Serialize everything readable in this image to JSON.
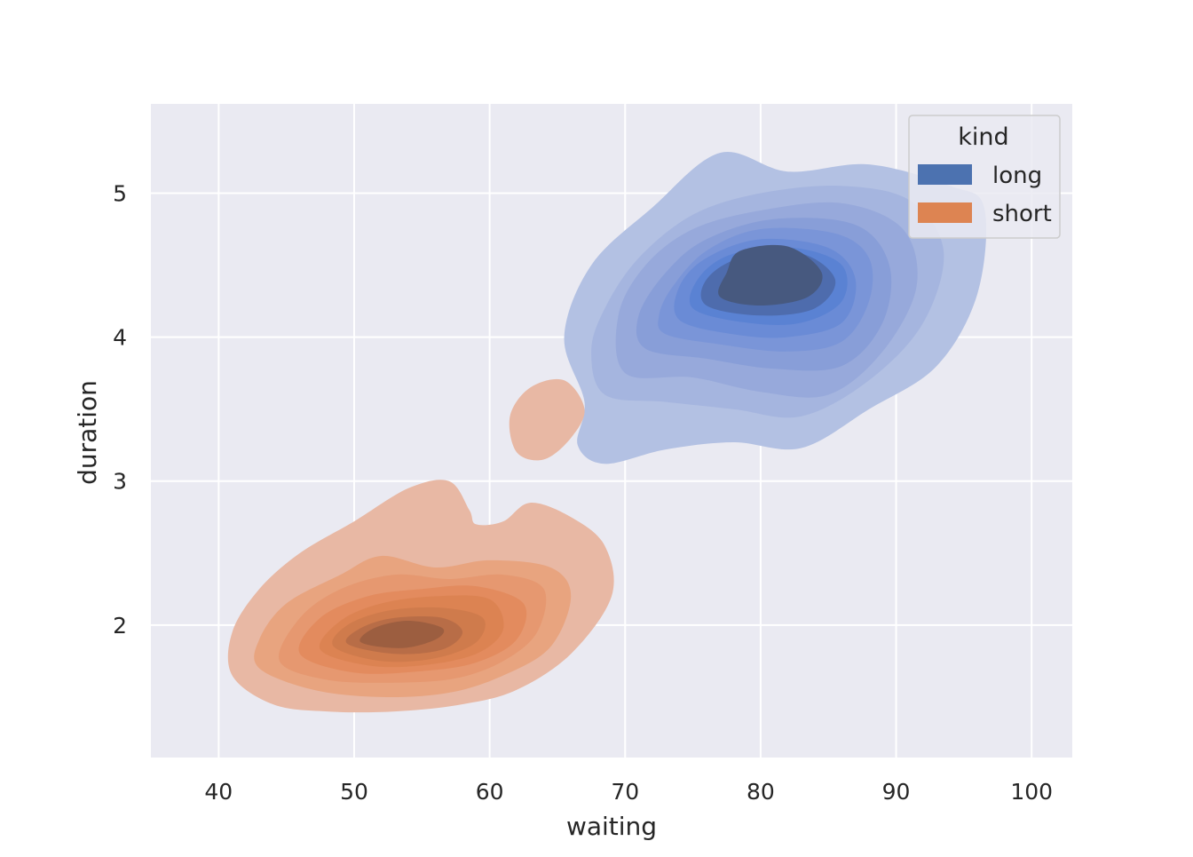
{
  "chart_data": {
    "type": "kde",
    "title": "",
    "xlabel": "waiting",
    "ylabel": "duration",
    "xlim": [
      35,
      103
    ],
    "ylim": [
      1.08,
      5.62
    ],
    "xticks": [
      40,
      50,
      60,
      70,
      80,
      90,
      100
    ],
    "yticks": [
      2,
      3,
      4,
      5
    ],
    "grid": true,
    "fill": true,
    "legend": {
      "title": "kind",
      "placement": "upper-right",
      "entries": [
        "long",
        "short"
      ]
    },
    "series": [
      {
        "name": "long",
        "color": "#4c72b0",
        "levels": [
          {
            "color": "#b3c1e3",
            "points": [
              [
                68.5,
                3.12
              ],
              [
                73,
                3.22
              ],
              [
                78,
                3.27
              ],
              [
                83,
                3.23
              ],
              [
                88,
                3.5
              ],
              [
                93,
                3.8
              ],
              [
                96,
                4.3
              ],
              [
                96.5,
                4.9
              ],
              [
                94,
                5.05
              ],
              [
                88,
                5.2
              ],
              [
                82,
                5.15
              ],
              [
                77,
                5.28
              ],
              [
                72,
                4.9
              ],
              [
                67.5,
                4.5
              ],
              [
                65.5,
                4.0
              ],
              [
                67,
                3.55
              ],
              [
                66.5,
                3.25
              ]
            ]
          },
          {
            "color": "#a5b5df",
            "points": [
              [
                68.5,
                3.6
              ],
              [
                73,
                3.55
              ],
              [
                78,
                3.5
              ],
              [
                83,
                3.45
              ],
              [
                88,
                3.7
              ],
              [
                92,
                4.1
              ],
              [
                93.5,
                4.6
              ],
              [
                91,
                4.95
              ],
              [
                86,
                5.05
              ],
              [
                80,
                5.0
              ],
              [
                75,
                4.85
              ],
              [
                71,
                4.55
              ],
              [
                68.5,
                4.2
              ],
              [
                67.5,
                3.9
              ]
            ]
          },
          {
            "color": "#97a9db",
            "points": [
              [
                70,
                3.75
              ],
              [
                75,
                3.72
              ],
              [
                80,
                3.62
              ],
              [
                85,
                3.6
              ],
              [
                89,
                3.9
              ],
              [
                91.5,
                4.35
              ],
              [
                90.5,
                4.75
              ],
              [
                86,
                4.93
              ],
              [
                80,
                4.88
              ],
              [
                75,
                4.75
              ],
              [
                71.5,
                4.5
              ],
              [
                69.5,
                4.15
              ]
            ]
          },
          {
            "color": "#889ed8",
            "points": [
              [
                71.5,
                3.92
              ],
              [
                76,
                3.85
              ],
              [
                81,
                3.78
              ],
              [
                86,
                3.8
              ],
              [
                89,
                4.1
              ],
              [
                89.5,
                4.5
              ],
              [
                87,
                4.78
              ],
              [
                81,
                4.82
              ],
              [
                76,
                4.68
              ],
              [
                73,
                4.45
              ],
              [
                71,
                4.15
              ]
            ]
          },
          {
            "color": "#7a95d8",
            "points": [
              [
                73,
                4.02
              ],
              [
                77,
                3.95
              ],
              [
                82,
                3.9
              ],
              [
                86,
                3.97
              ],
              [
                88,
                4.25
              ],
              [
                88,
                4.55
              ],
              [
                85.5,
                4.72
              ],
              [
                80,
                4.75
              ],
              [
                76,
                4.6
              ],
              [
                73.5,
                4.35
              ],
              [
                72.5,
                4.15
              ]
            ]
          },
          {
            "color": "#6a8bd6",
            "points": [
              [
                74,
                4.12
              ],
              [
                78,
                4.02
              ],
              [
                82,
                4.0
              ],
              [
                86,
                4.1
              ],
              [
                87,
                4.4
              ],
              [
                85,
                4.62
              ],
              [
                80,
                4.68
              ],
              [
                76,
                4.55
              ],
              [
                74,
                4.35
              ]
            ]
          },
          {
            "color": "#5a82d3",
            "points": [
              [
                75,
                4.2
              ],
              [
                79,
                4.1
              ],
              [
                83,
                4.1
              ],
              [
                86,
                4.25
              ],
              [
                86,
                4.5
              ],
              [
                82.5,
                4.62
              ],
              [
                78,
                4.58
              ],
              [
                75.5,
                4.42
              ]
            ]
          },
          {
            "color": "#4e6cad",
            "points": [
              [
                76,
                4.22
              ],
              [
                80,
                4.15
              ],
              [
                84,
                4.2
              ],
              [
                85.5,
                4.4
              ],
              [
                83,
                4.58
              ],
              [
                78.5,
                4.55
              ],
              [
                76,
                4.4
              ]
            ]
          },
          {
            "color": "#47597f",
            "points": [
              [
                77,
                4.28
              ],
              [
                80,
                4.22
              ],
              [
                83.5,
                4.28
              ],
              [
                84.5,
                4.45
              ],
              [
                82,
                4.63
              ],
              [
                78.5,
                4.6
              ],
              [
                77.5,
                4.45
              ]
            ]
          }
        ]
      },
      {
        "name": "short",
        "color": "#dd8452",
        "levels": [
          {
            "color": "#e8b8a4",
            "points": [
              [
                41,
                1.65
              ],
              [
                44,
                1.45
              ],
              [
                48,
                1.4
              ],
              [
                53,
                1.4
              ],
              [
                58,
                1.45
              ],
              [
                62,
                1.55
              ],
              [
                66,
                1.8
              ],
              [
                69,
                2.2
              ],
              [
                68.5,
                2.55
              ],
              [
                66,
                2.75
              ],
              [
                63,
                2.85
              ],
              [
                61,
                2.72
              ],
              [
                59,
                2.7
              ],
              [
                58.5,
                2.8
              ],
              [
                57,
                3.0
              ],
              [
                54,
                2.95
              ],
              [
                50,
                2.72
              ],
              [
                46,
                2.5
              ],
              [
                43,
                2.25
              ],
              [
                41,
                1.95
              ]
            ]
          },
          {
            "color": "#e8b8a4",
            "points": [
              [
                62,
                3.2
              ],
              [
                64,
                3.15
              ],
              [
                66,
                3.3
              ],
              [
                67,
                3.5
              ],
              [
                65.5,
                3.7
              ],
              [
                63,
                3.65
              ],
              [
                61.5,
                3.45
              ]
            ]
          },
          {
            "color": "#e8a47f",
            "points": [
              [
                43,
                1.7
              ],
              [
                47,
                1.55
              ],
              [
                52,
                1.5
              ],
              [
                57,
                1.53
              ],
              [
                61,
                1.65
              ],
              [
                64.5,
                1.85
              ],
              [
                66,
                2.2
              ],
              [
                64.5,
                2.4
              ],
              [
                60,
                2.45
              ],
              [
                56,
                2.4
              ],
              [
                52,
                2.48
              ],
              [
                49,
                2.35
              ],
              [
                45,
                2.15
              ],
              [
                43,
                1.9
              ]
            ]
          },
          {
            "color": "#e69870",
            "points": [
              [
                44.5,
                1.75
              ],
              [
                48,
                1.62
              ],
              [
                53,
                1.6
              ],
              [
                57.5,
                1.63
              ],
              [
                61,
                1.75
              ],
              [
                63.5,
                1.95
              ],
              [
                64,
                2.25
              ],
              [
                61,
                2.35
              ],
              [
                57,
                2.32
              ],
              [
                53,
                2.35
              ],
              [
                49,
                2.25
              ],
              [
                46,
                2.05
              ]
            ]
          },
          {
            "color": "#e38b5e",
            "points": [
              [
                46,
                1.8
              ],
              [
                50,
                1.67
              ],
              [
                55,
                1.68
              ],
              [
                59,
                1.74
              ],
              [
                62,
                1.9
              ],
              [
                62.5,
                2.15
              ],
              [
                59,
                2.27
              ],
              [
                55,
                2.25
              ],
              [
                51,
                2.2
              ],
              [
                47.5,
                2.05
              ]
            ]
          },
          {
            "color": "#dc8352",
            "points": [
              [
                47.5,
                1.83
              ],
              [
                51,
                1.72
              ],
              [
                55,
                1.72
              ],
              [
                59,
                1.8
              ],
              [
                61,
                1.97
              ],
              [
                60,
                2.18
              ],
              [
                56,
                2.2
              ],
              [
                52,
                2.15
              ],
              [
                49,
                2.03
              ]
            ]
          },
          {
            "color": "#cf7b4c",
            "points": [
              [
                48.5,
                1.85
              ],
              [
                52,
                1.75
              ],
              [
                56,
                1.77
              ],
              [
                59,
                1.88
              ],
              [
                59.5,
                2.05
              ],
              [
                56.5,
                2.12
              ],
              [
                52.5,
                2.1
              ],
              [
                49.5,
                2.0
              ]
            ]
          },
          {
            "color": "#b86d47",
            "points": [
              [
                49.5,
                1.87
              ],
              [
                53,
                1.8
              ],
              [
                56.5,
                1.83
              ],
              [
                58,
                1.95
              ],
              [
                56.5,
                2.05
              ],
              [
                53,
                2.05
              ],
              [
                50.5,
                1.98
              ]
            ]
          },
          {
            "color": "#9c5e40",
            "points": [
              [
                50.5,
                1.88
              ],
              [
                53.5,
                1.84
              ],
              [
                56,
                1.9
              ],
              [
                56.5,
                1.98
              ],
              [
                54,
                2.03
              ],
              [
                51.5,
                1.98
              ]
            ]
          }
        ]
      }
    ]
  }
}
